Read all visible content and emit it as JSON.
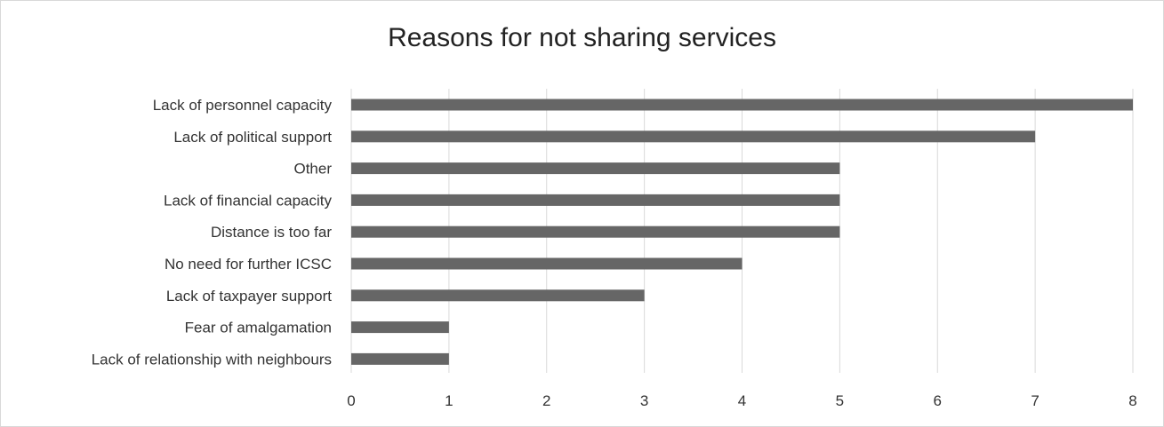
{
  "chart_data": {
    "type": "bar",
    "orientation": "horizontal",
    "title": "Reasons for not sharing services",
    "xlabel": "",
    "ylabel": "",
    "categories": [
      "Lack of personnel capacity",
      "Lack of political support",
      "Other",
      "Lack of financial capacity",
      "Distance is too far",
      "No need for further ICSC",
      "Lack of taxpayer support",
      "Fear of  amalgamation",
      "Lack of relationship with neighbours"
    ],
    "values": [
      8,
      7,
      5,
      5,
      5,
      4,
      3,
      1,
      1
    ],
    "xlim": [
      0,
      8
    ],
    "xticks": [
      "0",
      "1",
      "2",
      "3",
      "4",
      "5",
      "6",
      "7",
      "8"
    ],
    "grid": true,
    "legend": "none",
    "bar_color": "#666666",
    "grid_color": "#d9d9d9"
  }
}
